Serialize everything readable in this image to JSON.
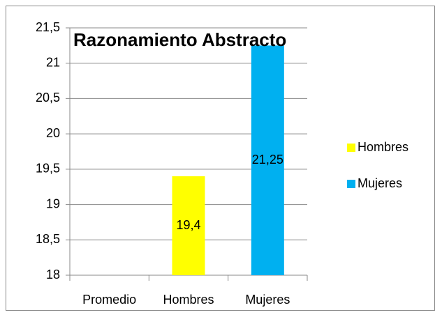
{
  "chart_data": {
    "type": "bar",
    "title": "Razonamiento Abstracto",
    "categories": [
      "Promedio",
      "Hombres",
      "Mujeres"
    ],
    "series": [
      {
        "name": "Hombres",
        "color": "#ffff00",
        "values": [
          null,
          19.4,
          null
        ],
        "value_labels": [
          null,
          "19,4",
          null
        ]
      },
      {
        "name": "Mujeres",
        "color": "#00b0f0",
        "values": [
          null,
          null,
          21.25
        ],
        "value_labels": [
          null,
          null,
          "21,25"
        ]
      }
    ],
    "ylim": [
      18,
      21.5
    ],
    "yticks": [
      18,
      {
        "value": 18.5,
        "label": "18,5"
      },
      19,
      {
        "value": 19.5,
        "label": "19,5"
      },
      20,
      {
        "value": 20.5,
        "label": "20,5"
      },
      21,
      {
        "value": 21.5,
        "label": "21,5"
      }
    ],
    "grid": true,
    "legend": "right"
  }
}
